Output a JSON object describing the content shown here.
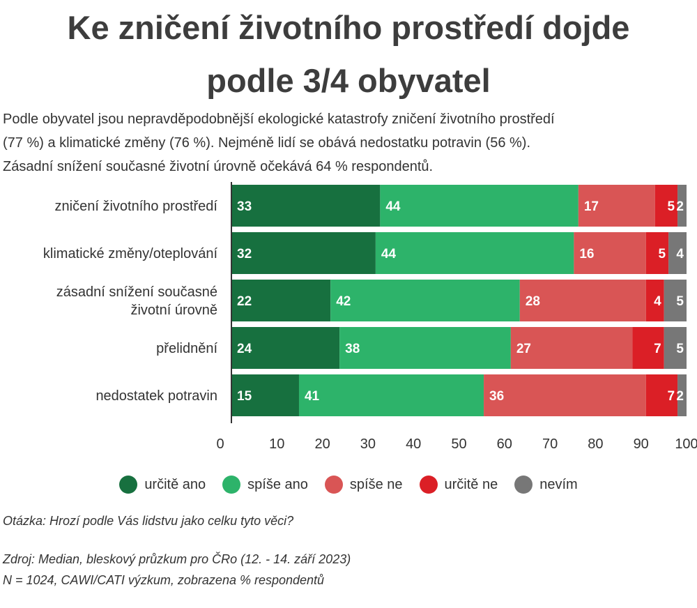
{
  "title_line1": "Ke zničení životního prostředí dojde",
  "title_line2": "podle 3/4 obyvatel",
  "subtitle_lines": [
    "Podle obyvatel jsou nepravděpodobnější ekologické katastrofy zničení životního prostředí",
    "(77 %) a klimatické změny (76 %). Nejméně lidí se obává nedostatku potravin (56 %).",
    "Zásadní snížení současné životní úrovně očekává 64 % respondentů."
  ],
  "question": "Otázka: Hrozí podle Vás lidstvu jako celku tyto věci?",
  "source_line1": "Zdroj: Median, bleskový průzkum pro ČRo (12. - 14. září 2023)",
  "source_line2": "N = 1024, CAWI/CATI výzkum, zobrazena % respondentů",
  "chart_data": {
    "type": "bar",
    "orientation": "horizontal",
    "stacked": true,
    "categories": [
      [
        "zničení životního prostředí"
      ],
      [
        "klimatické změny/oteplování"
      ],
      [
        "zásadní snížení současné",
        "životní úrovně"
      ],
      [
        "přelidnění"
      ],
      [
        "nedostatek potravin"
      ]
    ],
    "series": [
      {
        "name": "určitě ano",
        "color": "#17703f",
        "values": [
          33,
          32,
          22,
          24,
          15
        ]
      },
      {
        "name": "spíše ano",
        "color": "#2db36a",
        "values": [
          44,
          44,
          42,
          38,
          41
        ]
      },
      {
        "name": "spíše ne",
        "color": "#d95555",
        "values": [
          17,
          16,
          28,
          27,
          36
        ]
      },
      {
        "name": "určitě ne",
        "color": "#db1f26",
        "values": [
          5,
          5,
          4,
          7,
          7
        ]
      },
      {
        "name": "nevím",
        "color": "#777777",
        "values": [
          2,
          4,
          5,
          5,
          2
        ]
      }
    ],
    "x_ticks": [
      0,
      10,
      20,
      30,
      40,
      50,
      60,
      70,
      80,
      90,
      100
    ],
    "xlim": [
      0,
      100
    ],
    "legend_position": "bottom"
  }
}
